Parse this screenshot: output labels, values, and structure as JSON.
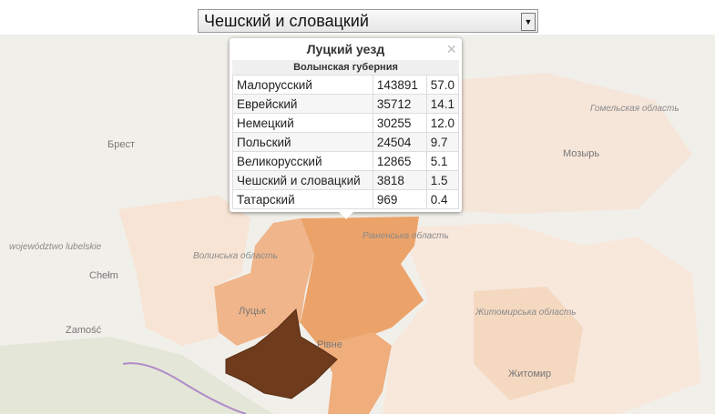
{
  "selector": {
    "selected": "Чешский и словацкий"
  },
  "popup": {
    "title": "Луцкий уезд",
    "subtitle": "Волынская губерния",
    "close": "×",
    "rows": [
      [
        "Малорусский",
        "143891",
        "57.0"
      ],
      [
        "Еврейский",
        "35712",
        "14.1"
      ],
      [
        "Немецкий",
        "30255",
        "12.0"
      ],
      [
        "Польский",
        "24504",
        "9.7"
      ],
      [
        "Великорусский",
        "12865",
        "5.1"
      ],
      [
        "Чешский и словацкий",
        "3818",
        "1.5"
      ],
      [
        "Татарский",
        "969",
        "0.4"
      ]
    ]
  },
  "map": {
    "labels": [
      "Брест",
      "Гомельская область",
      "Мозырь",
      "Рівненська область",
      "Волинська область",
      "województwo lubelskie",
      "Chełm",
      "Луцьк",
      "Zamość",
      "Рівне",
      "Житомирська область",
      "Житомир"
    ]
  }
}
